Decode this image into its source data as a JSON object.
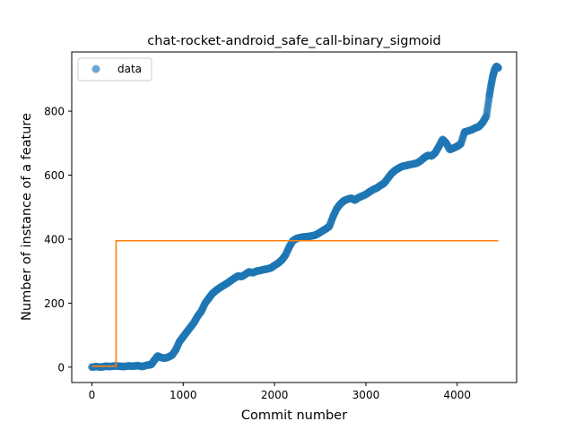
{
  "chart_data": {
    "type": "scatter",
    "title": "chat-rocket-android_safe_call-binary_sigmoid",
    "xlabel": "Commit number",
    "ylabel": "Number of instance of a feature",
    "xlim": [
      -220,
      4650
    ],
    "ylim": [
      -48,
      985
    ],
    "xticks": [
      0,
      1000,
      2000,
      3000,
      4000
    ],
    "yticks": [
      0,
      200,
      400,
      600,
      800
    ],
    "grid": false,
    "legend": {
      "placement": "top-left",
      "entries": [
        "data"
      ]
    },
    "colors": {
      "data": "#1f77b4",
      "fit": "#ff7f0e"
    },
    "series": [
      {
        "name": "data",
        "kind": "scatter",
        "points": [
          [
            0,
            0
          ],
          [
            50,
            2
          ],
          [
            100,
            0
          ],
          [
            150,
            3
          ],
          [
            200,
            2
          ],
          [
            250,
            4
          ],
          [
            300,
            3
          ],
          [
            350,
            2
          ],
          [
            400,
            4
          ],
          [
            450,
            3
          ],
          [
            500,
            5
          ],
          [
            550,
            2
          ],
          [
            600,
            6
          ],
          [
            650,
            8
          ],
          [
            680,
            20
          ],
          [
            720,
            35
          ],
          [
            760,
            30
          ],
          [
            800,
            28
          ],
          [
            840,
            32
          ],
          [
            880,
            38
          ],
          [
            920,
            55
          ],
          [
            960,
            80
          ],
          [
            1000,
            95
          ],
          [
            1040,
            110
          ],
          [
            1080,
            125
          ],
          [
            1120,
            140
          ],
          [
            1160,
            160
          ],
          [
            1200,
            175
          ],
          [
            1240,
            200
          ],
          [
            1280,
            215
          ],
          [
            1320,
            230
          ],
          [
            1360,
            240
          ],
          [
            1400,
            248
          ],
          [
            1440,
            255
          ],
          [
            1480,
            262
          ],
          [
            1520,
            270
          ],
          [
            1560,
            278
          ],
          [
            1600,
            285
          ],
          [
            1640,
            283
          ],
          [
            1680,
            290
          ],
          [
            1720,
            298
          ],
          [
            1760,
            295
          ],
          [
            1800,
            300
          ],
          [
            1840,
            302
          ],
          [
            1880,
            305
          ],
          [
            1920,
            307
          ],
          [
            1960,
            310
          ],
          [
            2000,
            318
          ],
          [
            2040,
            325
          ],
          [
            2080,
            335
          ],
          [
            2120,
            350
          ],
          [
            2160,
            375
          ],
          [
            2200,
            395
          ],
          [
            2240,
            402
          ],
          [
            2280,
            405
          ],
          [
            2320,
            407
          ],
          [
            2360,
            408
          ],
          [
            2400,
            410
          ],
          [
            2440,
            412
          ],
          [
            2480,
            418
          ],
          [
            2520,
            425
          ],
          [
            2560,
            432
          ],
          [
            2600,
            440
          ],
          [
            2640,
            470
          ],
          [
            2680,
            495
          ],
          [
            2720,
            510
          ],
          [
            2760,
            520
          ],
          [
            2800,
            525
          ],
          [
            2840,
            528
          ],
          [
            2880,
            522
          ],
          [
            2920,
            530
          ],
          [
            2960,
            535
          ],
          [
            3000,
            540
          ],
          [
            3040,
            548
          ],
          [
            3080,
            555
          ],
          [
            3120,
            560
          ],
          [
            3160,
            568
          ],
          [
            3200,
            575
          ],
          [
            3240,
            590
          ],
          [
            3280,
            605
          ],
          [
            3320,
            615
          ],
          [
            3360,
            622
          ],
          [
            3400,
            628
          ],
          [
            3440,
            630
          ],
          [
            3480,
            633
          ],
          [
            3520,
            635
          ],
          [
            3560,
            638
          ],
          [
            3600,
            645
          ],
          [
            3640,
            655
          ],
          [
            3680,
            662
          ],
          [
            3720,
            660
          ],
          [
            3760,
            670
          ],
          [
            3800,
            690
          ],
          [
            3840,
            712
          ],
          [
            3880,
            700
          ],
          [
            3920,
            680
          ],
          [
            3960,
            685
          ],
          [
            4000,
            690
          ],
          [
            4040,
            698
          ],
          [
            4080,
            735
          ],
          [
            4120,
            738
          ],
          [
            4160,
            742
          ],
          [
            4200,
            748
          ],
          [
            4240,
            752
          ],
          [
            4280,
            765
          ],
          [
            4320,
            785
          ],
          [
            4350,
            845
          ],
          [
            4370,
            880
          ],
          [
            4390,
            910
          ],
          [
            4410,
            930
          ],
          [
            4430,
            940
          ],
          [
            4450,
            935
          ]
        ]
      },
      {
        "name": "",
        "kind": "step-line",
        "points": [
          [
            0,
            3
          ],
          [
            265,
            3
          ],
          [
            265,
            395
          ],
          [
            4450,
            395
          ]
        ]
      }
    ]
  }
}
